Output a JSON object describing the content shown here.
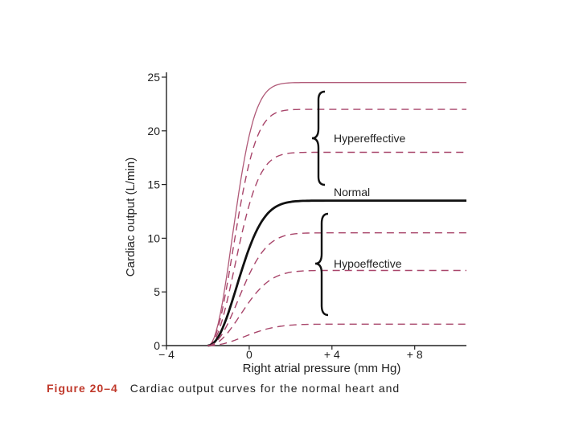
{
  "chart_data": {
    "type": "line",
    "xlabel": "Right atrial pressure (mm Hg)",
    "ylabel": "Cardiac output (L/min)",
    "xlim": [
      -4,
      10.5
    ],
    "ylim": [
      0,
      25
    ],
    "x_ticks": [
      {
        "value": -4,
        "label": "− 4"
      },
      {
        "value": 0,
        "label": "0"
      },
      {
        "value": 4,
        "label": "+ 4"
      },
      {
        "value": 8,
        "label": "+ 8"
      }
    ],
    "y_ticks": [
      {
        "value": 0,
        "label": "0"
      },
      {
        "value": 5,
        "label": "5"
      },
      {
        "value": 10,
        "label": "10"
      },
      {
        "value": 15,
        "label": "15"
      },
      {
        "value": 20,
        "label": "20"
      },
      {
        "value": 25,
        "label": "25"
      }
    ],
    "grid": false,
    "series": [
      {
        "plateau": 24.5,
        "style": "solid-thin",
        "color": "#b05a78"
      },
      {
        "plateau": 22.0,
        "style": "dashed",
        "color": "#a8456a"
      },
      {
        "plateau": 18.0,
        "style": "dashed",
        "color": "#a8456a"
      },
      {
        "name": "Normal",
        "plateau": 13.5,
        "style": "solid-bold",
        "color": "#111111"
      },
      {
        "plateau": 10.5,
        "style": "dashed",
        "color": "#a8456a"
      },
      {
        "plateau": 7.0,
        "style": "dashed",
        "color": "#a8456a"
      },
      {
        "plateau": 2.0,
        "style": "dashed",
        "color": "#a8456a"
      }
    ],
    "annotations": {
      "hypereffective": "Hypereffective",
      "normal": "Normal",
      "hypoeffective": "Hypoeffective"
    }
  },
  "caption": {
    "figure": "Figure 20–4",
    "text": "Cardiac output curves for the normal heart and"
  }
}
